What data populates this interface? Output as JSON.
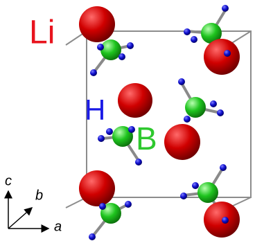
{
  "labels": {
    "li": "Li",
    "h": "H",
    "b": "B"
  },
  "axes": {
    "c": "c",
    "b": "b",
    "a": "a"
  }
}
